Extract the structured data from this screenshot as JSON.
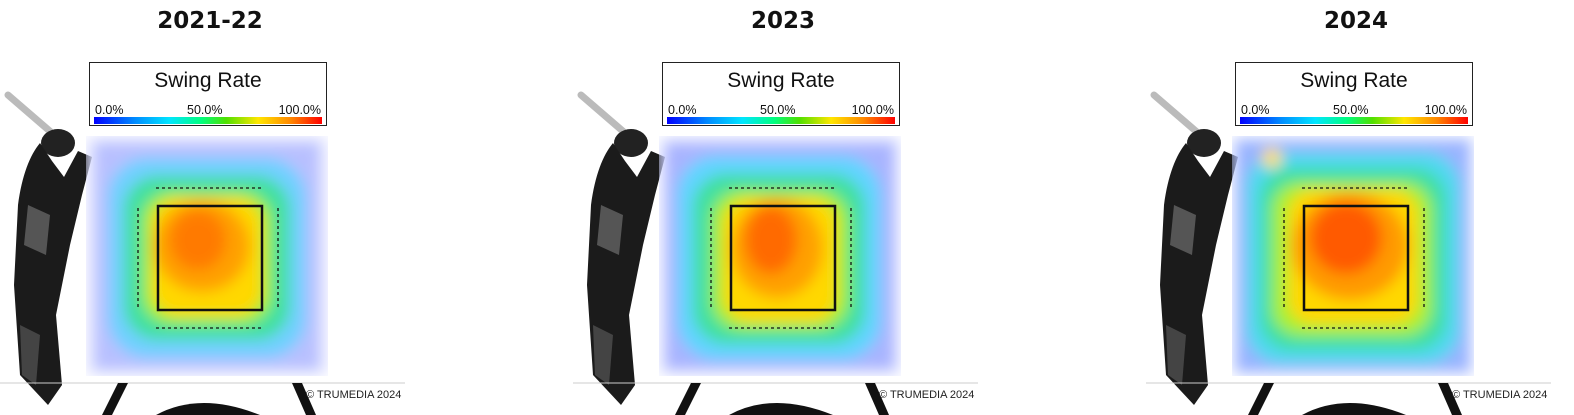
{
  "chart_data": [
    {
      "type": "heatmap",
      "title": "2021-22",
      "legend": {
        "title": "Swing Rate",
        "ticks": [
          "0.0%",
          "50.0%",
          "100.0%"
        ],
        "colors": [
          "#0000ff",
          "#00e5ff",
          "#00ff80",
          "#ffe600",
          "#ff0000"
        ]
      },
      "copyright": "© TRUMEDIA 2024"
    },
    {
      "type": "heatmap",
      "title": "2023",
      "legend": {
        "title": "Swing Rate",
        "ticks": [
          "0.0%",
          "50.0%",
          "100.0%"
        ],
        "colors": [
          "#0000ff",
          "#00e5ff",
          "#00ff80",
          "#ffe600",
          "#ff0000"
        ]
      },
      "copyright": "© TRUMEDIA 2024"
    },
    {
      "type": "heatmap",
      "title": "2024",
      "legend": {
        "title": "Swing Rate",
        "ticks": [
          "0.0%",
          "50.0%",
          "100.0%"
        ],
        "colors": [
          "#0000ff",
          "#00e5ff",
          "#00ff80",
          "#ffe600",
          "#ff0000"
        ]
      },
      "copyright": "© TRUMEDIA 2024"
    }
  ]
}
